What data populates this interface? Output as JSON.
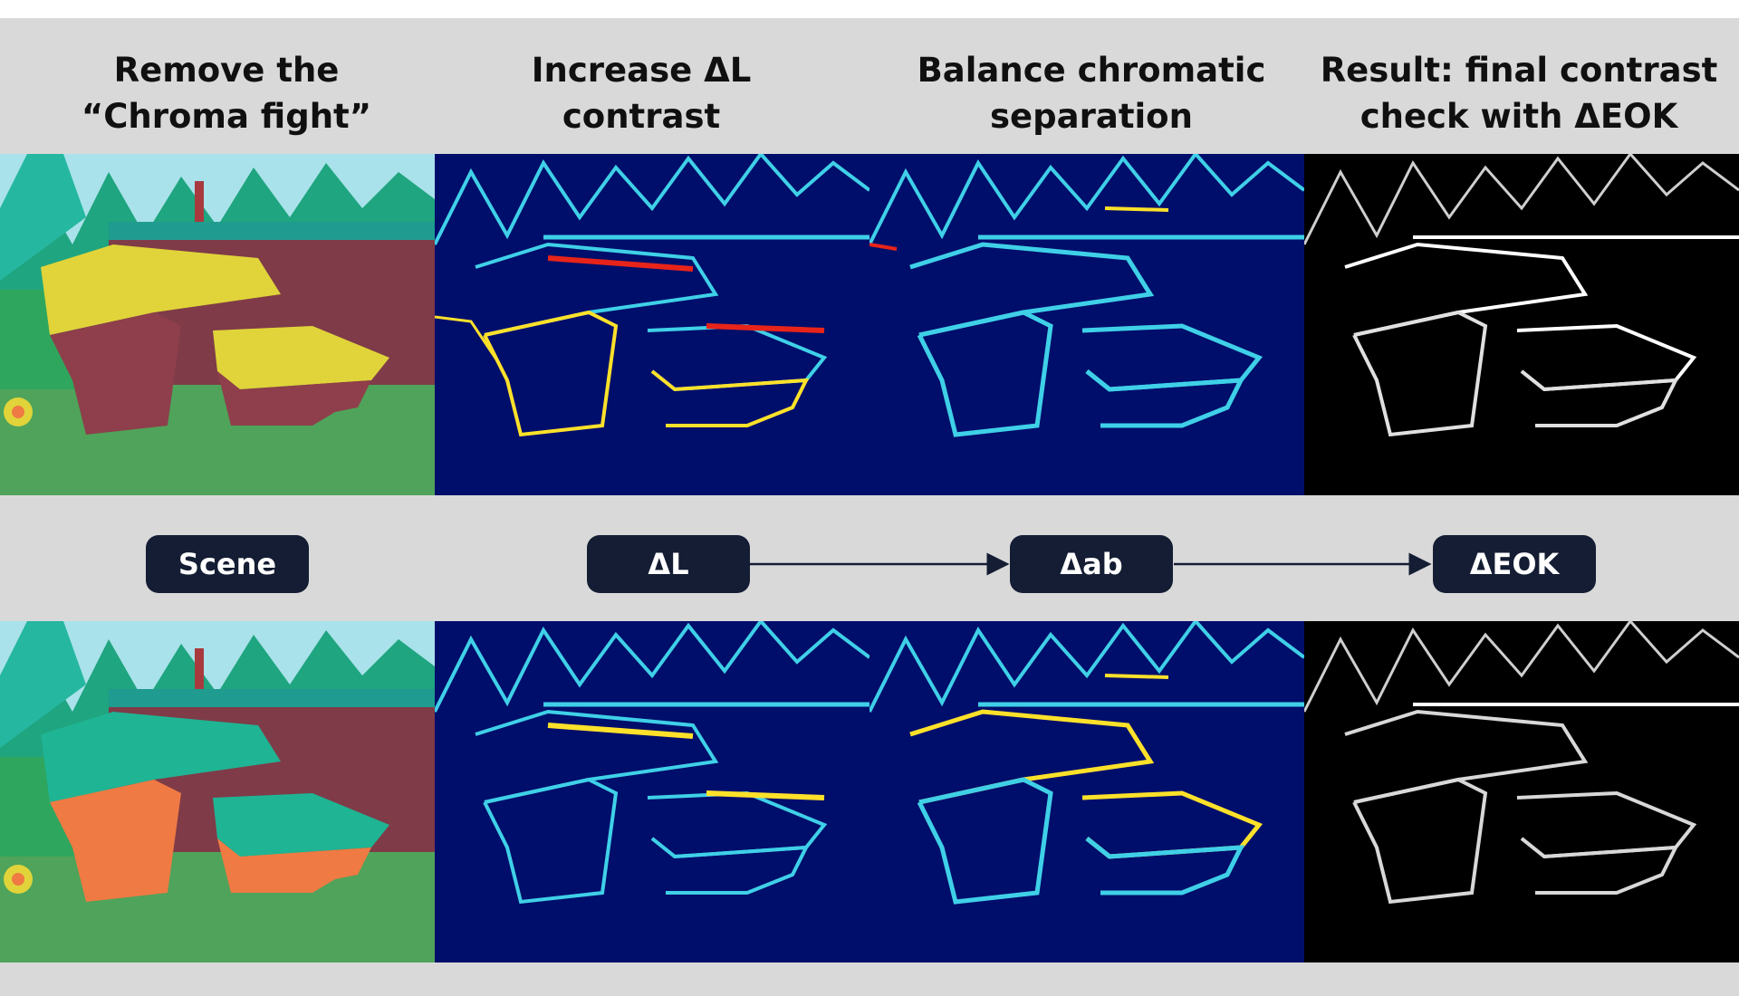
{
  "headings": [
    "Remove the\n“Chroma fight”",
    "Increase ΔL\ncontrast",
    "Balance chromatic\nseparation",
    "Result: final contrast\ncheck with ΔEOK"
  ],
  "pipeline": {
    "scene_label": "Scene",
    "steps": [
      "ΔL",
      "Δab",
      "ΔEOK"
    ]
  },
  "colors": {
    "background": "#d9d9d9",
    "pill": "#141d33",
    "heatmap_base": "#000e6b",
    "edge_red": "#e8241a",
    "edge_yellow": "#ffe12a",
    "edge_cyan": "#3fd0e8",
    "rock_top_before": "#e0d43a",
    "rock_side_before": "#8e3f4b",
    "rock_top_after": "#1fb493",
    "rock_side_after": "#ef7a43"
  },
  "panels": {
    "top": [
      "scene-before",
      "delta-l-heatmap",
      "delta-ab-heatmap",
      "delta-eok-edges"
    ],
    "bottom": [
      "scene-after",
      "delta-l-heatmap",
      "delta-ab-heatmap",
      "delta-eok-edges"
    ]
  }
}
